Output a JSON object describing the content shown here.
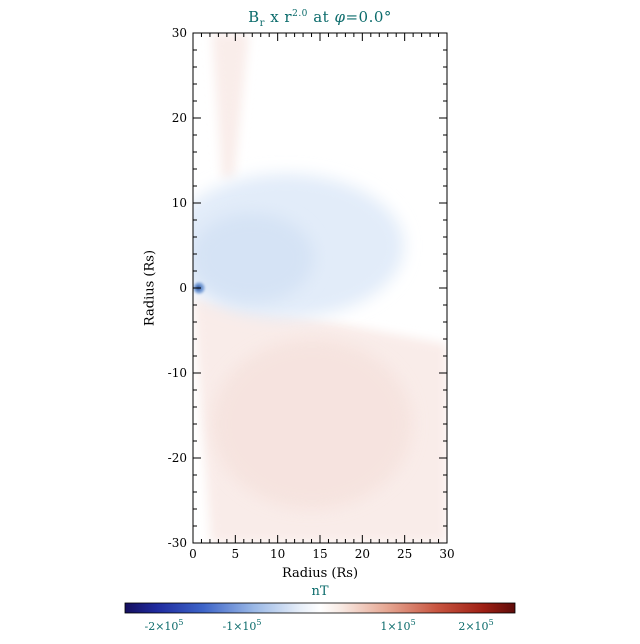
{
  "title": {
    "base": "B",
    "sub": "r",
    "mid": " x r",
    "sup": "2.0",
    "at": " at ",
    "phi": "φ",
    "eq": "=0.0°"
  },
  "axes": {
    "x": {
      "label": "Radius (Rs)",
      "range": [
        0,
        30
      ],
      "minor_step": 1,
      "ticks": [
        {
          "v": 0,
          "label": "0"
        },
        {
          "v": 5,
          "label": "5"
        },
        {
          "v": 10,
          "label": "10"
        },
        {
          "v": 15,
          "label": "15"
        },
        {
          "v": 20,
          "label": "20"
        },
        {
          "v": 25,
          "label": "25"
        },
        {
          "v": 30,
          "label": "30"
        }
      ]
    },
    "y": {
      "label": "Radius (Rs)",
      "range": [
        -30,
        30
      ],
      "minor_step": 2,
      "ticks": [
        {
          "v": -30,
          "label": "-30"
        },
        {
          "v": -20,
          "label": "-20"
        },
        {
          "v": -10,
          "label": "-10"
        },
        {
          "v": 0,
          "label": "0"
        },
        {
          "v": 10,
          "label": "10"
        },
        {
          "v": 20,
          "label": "20"
        },
        {
          "v": 30,
          "label": "30"
        }
      ]
    }
  },
  "colorbar": {
    "label": "nT",
    "min": -250000,
    "max": 250000,
    "ticks": [
      {
        "v": -200000,
        "m": "-2×10",
        "e": "5"
      },
      {
        "v": -100000,
        "m": "-1×10",
        "e": "5"
      },
      {
        "v": 100000,
        "m": "1×10",
        "e": "5"
      },
      {
        "v": 200000,
        "m": "2×10",
        "e": "5"
      }
    ],
    "gradient": [
      {
        "o": 0.0,
        "c": "#150f5e"
      },
      {
        "o": 0.08,
        "c": "#1f2a9e"
      },
      {
        "o": 0.2,
        "c": "#3d64c8"
      },
      {
        "o": 0.33,
        "c": "#9ab8e6"
      },
      {
        "o": 0.45,
        "c": "#e8eff9"
      },
      {
        "o": 0.5,
        "c": "#ffffff"
      },
      {
        "o": 0.55,
        "c": "#f9ece6"
      },
      {
        "o": 0.67,
        "c": "#e6a894"
      },
      {
        "o": 0.8,
        "c": "#c85540"
      },
      {
        "o": 0.92,
        "c": "#9e1f14"
      },
      {
        "o": 1.0,
        "c": "#5e0c0a"
      }
    ]
  },
  "colors": {
    "text_accent": "#0b6b6b",
    "axis_text": "#000000",
    "feature_negative_lobe": "#e2ecf9",
    "feature_negative_core": "#d5e3f5",
    "feature_origin_outer": "#7aa0d8",
    "feature_origin_inner": "#33589f",
    "feature_positive_fan": "#f9ece9",
    "feature_positive_core": "#f5e1dc",
    "feature_upper_band": "#f9edea"
  },
  "chart_data": {
    "type": "heatmap",
    "title": "Br x r^2.0 at phi=0.0 deg",
    "quantity": "Br × r^2.0",
    "phi_deg": 0.0,
    "units": "nT",
    "xlabel": "Radius (Rs)",
    "ylabel": "Radius (Rs)",
    "xlim": [
      0,
      30
    ],
    "ylim": [
      -30,
      30
    ],
    "x_ticks": [
      0,
      5,
      10,
      15,
      20,
      25,
      30
    ],
    "y_ticks": [
      -30,
      -20,
      -10,
      0,
      10,
      20,
      30
    ],
    "colorbar": {
      "label": "nT",
      "range": [
        -250000,
        250000
      ],
      "ticks": [
        -200000,
        -100000,
        100000,
        200000
      ]
    },
    "features": [
      {
        "name": "negative-lobe",
        "sign": "negative",
        "description": "Broad faint light-blue region (negative Br) above the equator",
        "center": [
          11,
          5
        ],
        "extent_x": [
          0,
          26
        ],
        "extent_y": [
          -2,
          13
        ],
        "approx_value": -40000
      },
      {
        "name": "origin-spot",
        "sign": "negative",
        "description": "Small intense dark-blue spot at the origin near y=0",
        "center": [
          0.7,
          0
        ],
        "radius": 1,
        "approx_value": -220000
      },
      {
        "name": "positive-fan",
        "sign": "positive",
        "description": "Large faint pink fan (positive Br) below the equator, widening from the origin toward the lower right",
        "extent_x": [
          0,
          30
        ],
        "extent_y": [
          -30,
          -1
        ],
        "approx_value": 30000
      },
      {
        "name": "upper-left-band",
        "sign": "positive",
        "description": "Narrow faint pink band near the top left, from about y=12 up to y=30",
        "extent_x": [
          2,
          7
        ],
        "extent_y": [
          12,
          30
        ],
        "approx_value": 20000
      }
    ]
  }
}
